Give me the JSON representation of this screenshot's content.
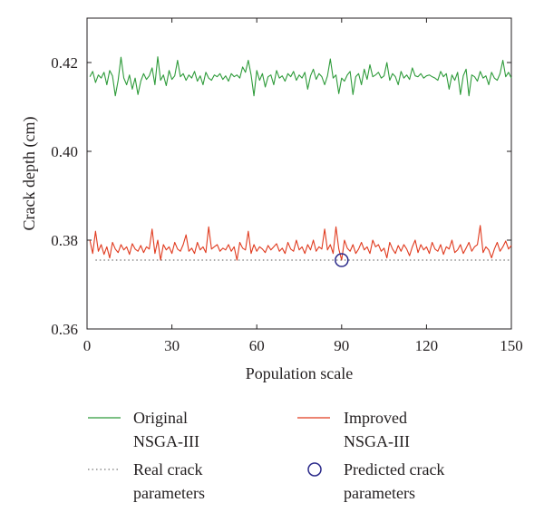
{
  "chart_data": {
    "type": "line",
    "title": "",
    "xlabel": "Population scale",
    "ylabel": "Crack depth (cm)",
    "xlim": [
      0,
      150
    ],
    "ylim": [
      0.36,
      0.43
    ],
    "xticks": [
      0,
      30,
      60,
      90,
      120,
      150
    ],
    "xtick_labels": [
      "0",
      "30",
      "60",
      "90",
      "120",
      "150"
    ],
    "yticks": [
      0.36,
      0.38,
      0.4,
      0.42
    ],
    "ytick_labels": [
      "0.36",
      "0.38",
      "0.40",
      "0.42"
    ],
    "grid": false,
    "legend_position": "below",
    "series": [
      {
        "name": "Original NSGA-III",
        "color": "#2e9b3a",
        "x": [
          1,
          2,
          3,
          4,
          5,
          6,
          7,
          8,
          9,
          10,
          11,
          12,
          13,
          14,
          15,
          16,
          17,
          18,
          19,
          20,
          21,
          22,
          23,
          24,
          25,
          26,
          27,
          28,
          29,
          30,
          31,
          32,
          33,
          34,
          35,
          36,
          37,
          38,
          39,
          40,
          41,
          42,
          43,
          44,
          45,
          46,
          47,
          48,
          49,
          50,
          51,
          52,
          53,
          54,
          55,
          56,
          57,
          58,
          59,
          60,
          61,
          62,
          63,
          64,
          65,
          66,
          67,
          68,
          69,
          70,
          71,
          72,
          73,
          74,
          75,
          76,
          77,
          78,
          79,
          80,
          81,
          82,
          83,
          84,
          85,
          86,
          87,
          88,
          89,
          90,
          91,
          92,
          93,
          94,
          95,
          96,
          97,
          98,
          99,
          100,
          101,
          102,
          103,
          104,
          105,
          106,
          107,
          108,
          109,
          110,
          111,
          112,
          113,
          114,
          115,
          116,
          117,
          118,
          119,
          120,
          121,
          122,
          123,
          124,
          125,
          126,
          127,
          128,
          129,
          130,
          131,
          132,
          133,
          134,
          135,
          136,
          137,
          138,
          139,
          140,
          141,
          142,
          143,
          144,
          145,
          146,
          147,
          148,
          149,
          150
        ],
        "values": [
          0.4168,
          0.418,
          0.4155,
          0.4172,
          0.4165,
          0.4178,
          0.415,
          0.4182,
          0.417,
          0.4125,
          0.416,
          0.4212,
          0.4165,
          0.415,
          0.4172,
          0.414,
          0.4165,
          0.4128,
          0.4158,
          0.4175,
          0.4162,
          0.417,
          0.4188,
          0.415,
          0.4213,
          0.416,
          0.4172,
          0.4148,
          0.4182,
          0.4162,
          0.417,
          0.4205,
          0.4168,
          0.4175,
          0.416,
          0.4172,
          0.4165,
          0.418,
          0.4158,
          0.417,
          0.415,
          0.4178,
          0.4165,
          0.416,
          0.4172,
          0.4168,
          0.4175,
          0.4162,
          0.417,
          0.4158,
          0.4175,
          0.4168,
          0.4172,
          0.4165,
          0.419,
          0.4178,
          0.4205,
          0.4172,
          0.4125,
          0.4182,
          0.416,
          0.4175,
          0.4145,
          0.4168,
          0.4172,
          0.415,
          0.4182,
          0.4165,
          0.417,
          0.4158,
          0.4175,
          0.4168,
          0.418,
          0.416,
          0.4172,
          0.4165,
          0.4178,
          0.414,
          0.417,
          0.4185,
          0.4162,
          0.4175,
          0.4168,
          0.415,
          0.417,
          0.4208,
          0.4165,
          0.4172,
          0.413,
          0.4165,
          0.4158,
          0.4172,
          0.418,
          0.4128,
          0.4168,
          0.4175,
          0.415,
          0.4185,
          0.4162,
          0.4195,
          0.4168,
          0.4172,
          0.4178,
          0.4165,
          0.417,
          0.42,
          0.416,
          0.4175,
          0.4168,
          0.415,
          0.418,
          0.4165,
          0.4172,
          0.4162,
          0.4188,
          0.417,
          0.4168,
          0.4175,
          0.4165,
          0.417,
          0.4172,
          0.4168,
          0.4165,
          0.416,
          0.418,
          0.4168,
          0.4175,
          0.414,
          0.4172,
          0.416,
          0.4178,
          0.4128,
          0.417,
          0.4185,
          0.4125,
          0.4172,
          0.4168,
          0.4158,
          0.418,
          0.4165,
          0.417,
          0.415,
          0.4178,
          0.4165,
          0.416,
          0.4175,
          0.4205,
          0.4168,
          0.4178,
          0.4165
        ]
      },
      {
        "name": "Improved NSGA-III",
        "color": "#e03a1e",
        "x": [
          1,
          2,
          3,
          4,
          5,
          6,
          7,
          8,
          9,
          10,
          11,
          12,
          13,
          14,
          15,
          16,
          17,
          18,
          19,
          20,
          21,
          22,
          23,
          24,
          25,
          26,
          27,
          28,
          29,
          30,
          31,
          32,
          33,
          34,
          35,
          36,
          37,
          38,
          39,
          40,
          41,
          42,
          43,
          44,
          45,
          46,
          47,
          48,
          49,
          50,
          51,
          52,
          53,
          54,
          55,
          56,
          57,
          58,
          59,
          60,
          61,
          62,
          63,
          64,
          65,
          66,
          67,
          68,
          69,
          70,
          71,
          72,
          73,
          74,
          75,
          76,
          77,
          78,
          79,
          80,
          81,
          82,
          83,
          84,
          85,
          86,
          87,
          88,
          89,
          90,
          91,
          92,
          93,
          94,
          95,
          96,
          97,
          98,
          99,
          100,
          101,
          102,
          103,
          104,
          105,
          106,
          107,
          108,
          109,
          110,
          111,
          112,
          113,
          114,
          115,
          116,
          117,
          118,
          119,
          120,
          121,
          122,
          123,
          124,
          125,
          126,
          127,
          128,
          129,
          130,
          131,
          132,
          133,
          134,
          135,
          136,
          137,
          138,
          139,
          140,
          141,
          142,
          143,
          144,
          145,
          146,
          147,
          148,
          149,
          150
        ],
        "values": [
          0.38,
          0.377,
          0.382,
          0.3775,
          0.379,
          0.3768,
          0.3785,
          0.376,
          0.3795,
          0.378,
          0.3772,
          0.379,
          0.3778,
          0.3785,
          0.3768,
          0.3792,
          0.378,
          0.3775,
          0.3788,
          0.3772,
          0.3785,
          0.378,
          0.3825,
          0.377,
          0.38,
          0.3755,
          0.379,
          0.3778,
          0.3785,
          0.377,
          0.3795,
          0.378,
          0.3775,
          0.379,
          0.3812,
          0.3775,
          0.3782,
          0.377,
          0.3795,
          0.3778,
          0.3785,
          0.3772,
          0.383,
          0.378,
          0.3785,
          0.379,
          0.3775,
          0.3782,
          0.3778,
          0.379,
          0.3775,
          0.3785,
          0.3755,
          0.3795,
          0.3782,
          0.3778,
          0.382,
          0.377,
          0.379,
          0.3775,
          0.3785,
          0.378,
          0.3772,
          0.3788,
          0.3778,
          0.3785,
          0.3792,
          0.3775,
          0.3782,
          0.377,
          0.3795,
          0.378,
          0.3775,
          0.38,
          0.3778,
          0.3785,
          0.377,
          0.379,
          0.3778,
          0.38,
          0.3775,
          0.3785,
          0.378,
          0.3825,
          0.3778,
          0.379,
          0.377,
          0.383,
          0.378,
          0.3755,
          0.38,
          0.3782,
          0.3775,
          0.379,
          0.377,
          0.378,
          0.3795,
          0.3778,
          0.3785,
          0.377,
          0.38,
          0.3785,
          0.379,
          0.3775,
          0.3782,
          0.376,
          0.3795,
          0.378,
          0.377,
          0.3788,
          0.3775,
          0.379,
          0.378,
          0.3765,
          0.3785,
          0.38,
          0.3772,
          0.379,
          0.3778,
          0.3785,
          0.377,
          0.3795,
          0.378,
          0.3775,
          0.379,
          0.3768,
          0.3785,
          0.378,
          0.38,
          0.3772,
          0.3778,
          0.379,
          0.377,
          0.3782,
          0.3795,
          0.3775,
          0.3785,
          0.379,
          0.3833,
          0.3772,
          0.3785,
          0.3778,
          0.376,
          0.378,
          0.3795,
          0.3775,
          0.3785,
          0.3798,
          0.378,
          0.3788
        ]
      },
      {
        "name": "Real crack parameters",
        "color": "#555555",
        "x": [
          3,
          150
        ],
        "values": [
          0.3755,
          0.3755
        ]
      }
    ],
    "markers": [
      {
        "name": "Predicted crack parameters",
        "color": "#2b2a8a",
        "x": 90,
        "y": 0.3755
      }
    ]
  },
  "legend": {
    "original_line1": "Original",
    "original_line2": "NSGA-III",
    "improved_line1": "Improved",
    "improved_line2": "NSGA-III",
    "real_line1": "Real crack",
    "real_line2": "parameters",
    "predicted_line1": "Predicted crack",
    "predicted_line2": "parameters"
  }
}
